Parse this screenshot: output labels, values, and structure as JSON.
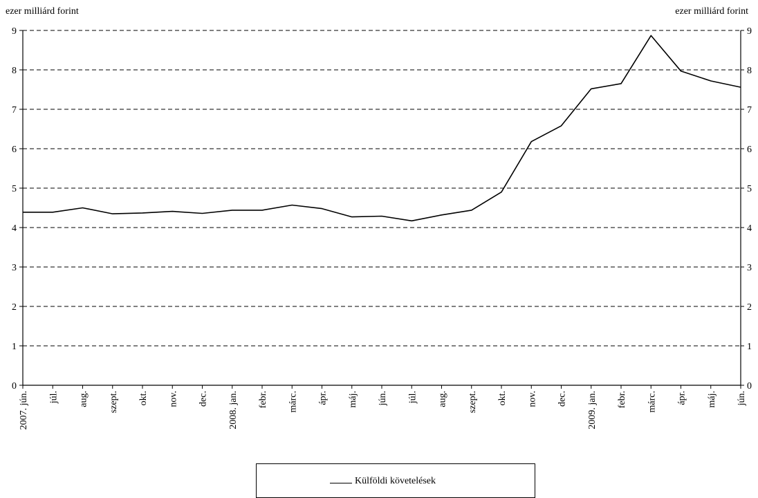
{
  "chart_data": {
    "type": "line",
    "ylabel_left": "ezer milliárd forint",
    "ylabel_right": "ezer milliárd forint",
    "ylim": [
      0,
      9
    ],
    "yticks": [
      0,
      1,
      2,
      3,
      4,
      5,
      6,
      7,
      8,
      9
    ],
    "grid": "horizontal dashed",
    "categories": [
      "2007. jún.",
      "júl.",
      "aug.",
      "szept.",
      "okt.",
      "nov.",
      "dec.",
      "2008. jan.",
      "febr.",
      "márc.",
      "ápr.",
      "máj.",
      "jún.",
      "júl.",
      "aug.",
      "szept.",
      "okt.",
      "nov.",
      "dec.",
      "2009. jan.",
      "febr.",
      "márc.",
      "ápr.",
      "máj.",
      "jún."
    ],
    "series": [
      {
        "name": "Külföldi követelések",
        "color": "#000000",
        "values": [
          4.39,
          4.39,
          4.5,
          4.35,
          4.37,
          4.41,
          4.36,
          4.44,
          4.44,
          4.57,
          4.48,
          4.27,
          4.29,
          4.17,
          4.32,
          4.44,
          4.9,
          6.18,
          6.58,
          7.52,
          7.65,
          8.87,
          7.97,
          7.72,
          7.56
        ]
      }
    ],
    "legend_position": "bottom-center"
  }
}
